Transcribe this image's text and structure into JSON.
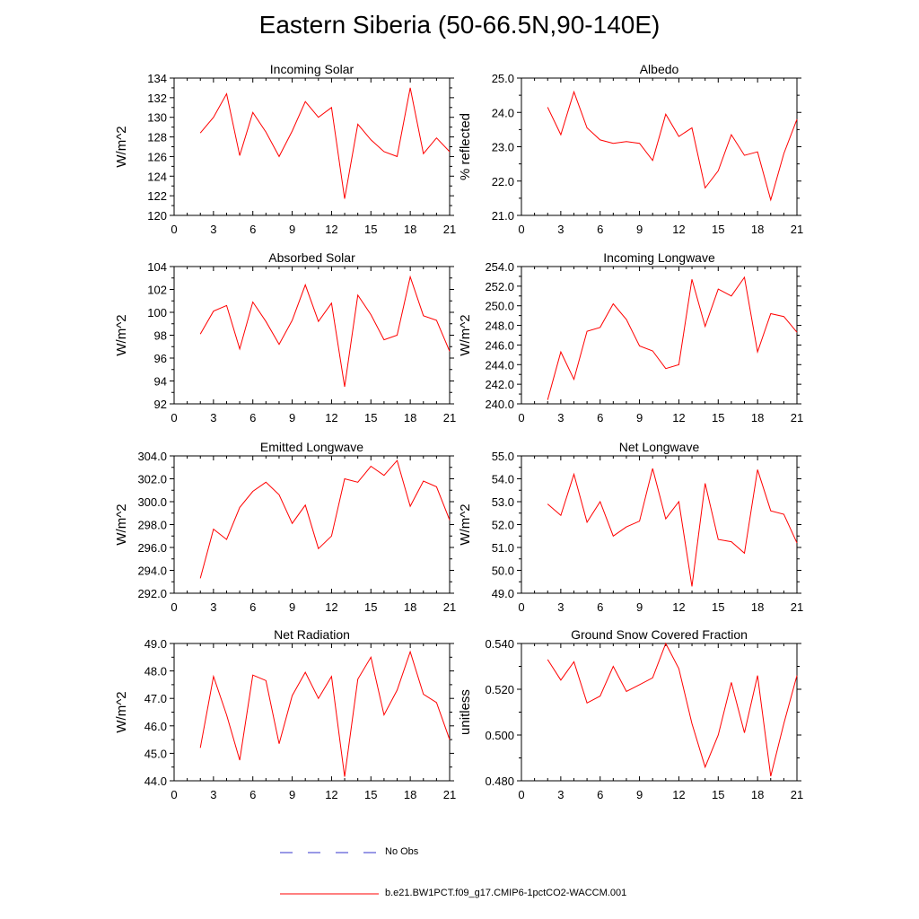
{
  "title": "Eastern Siberia (50-66.5N,90-140E)",
  "colors": {
    "series": "#ff0000",
    "obs": "#3333cc",
    "axis": "#000000"
  },
  "legend": {
    "obs_label": "No Obs",
    "series_label": "b.e21.BW1PCT.f09_g17.CMIP6-1pctCO2-WACCM.001"
  },
  "chart_data": [
    {
      "type": "line",
      "title": "Incoming Solar",
      "ylabel": "W/m^2",
      "xlabel": "",
      "xlim": [
        0,
        21
      ],
      "ylim": [
        120,
        134
      ],
      "xticks": [
        "0",
        "3",
        "6",
        "9",
        "12",
        "15",
        "18",
        "21"
      ],
      "yticks": [
        "120",
        "122",
        "124",
        "126",
        "128",
        "130",
        "132",
        "134"
      ],
      "x": [
        2,
        3,
        4,
        5,
        6,
        7,
        8,
        9,
        10,
        11,
        12,
        13,
        14,
        15,
        16,
        17,
        18,
        19,
        20,
        21
      ],
      "series": [
        {
          "name": "b.e21.BW1PCT.f09_g17.CMIP6-1pctCO2-WACCM.001",
          "values": [
            128.4,
            130.0,
            132.4,
            126.1,
            130.5,
            128.5,
            126.0,
            128.6,
            131.6,
            130.0,
            131.0,
            121.7,
            129.3,
            127.7,
            126.5,
            126.0,
            133.0,
            126.3,
            127.9,
            126.5
          ]
        }
      ]
    },
    {
      "type": "line",
      "title": "Albedo",
      "ylabel": "% reflected",
      "xlabel": "",
      "xlim": [
        0,
        21
      ],
      "ylim": [
        21.0,
        25.0
      ],
      "xticks": [
        "0",
        "3",
        "6",
        "9",
        "12",
        "15",
        "18",
        "21"
      ],
      "yticks": [
        "21.0",
        "22.0",
        "23.0",
        "24.0",
        "25.0"
      ],
      "x": [
        2,
        3,
        4,
        5,
        6,
        7,
        8,
        9,
        10,
        11,
        12,
        13,
        14,
        15,
        16,
        17,
        18,
        19,
        20,
        21
      ],
      "series": [
        {
          "name": "b.e21.BW1PCT.f09_g17.CMIP6-1pctCO2-WACCM.001",
          "values": [
            24.15,
            23.35,
            24.6,
            23.55,
            23.2,
            23.1,
            23.15,
            23.1,
            22.6,
            23.95,
            23.3,
            23.55,
            21.8,
            22.3,
            23.35,
            22.75,
            22.85,
            21.45,
            22.8,
            23.8
          ]
        }
      ]
    },
    {
      "type": "line",
      "title": "Absorbed Solar",
      "ylabel": "W/m^2",
      "xlabel": "",
      "xlim": [
        0,
        21
      ],
      "ylim": [
        92,
        104
      ],
      "xticks": [
        "0",
        "3",
        "6",
        "9",
        "12",
        "15",
        "18",
        "21"
      ],
      "yticks": [
        "92",
        "94",
        "96",
        "98",
        "100",
        "102",
        "104"
      ],
      "x": [
        2,
        3,
        4,
        5,
        6,
        7,
        8,
        9,
        10,
        11,
        12,
        13,
        14,
        15,
        16,
        17,
        18,
        19,
        20,
        21
      ],
      "series": [
        {
          "name": "b.e21.BW1PCT.f09_g17.CMIP6-1pctCO2-WACCM.001",
          "values": [
            98.1,
            100.1,
            100.6,
            96.8,
            100.9,
            99.2,
            97.2,
            99.3,
            102.4,
            99.2,
            100.8,
            93.5,
            101.5,
            99.8,
            97.6,
            98.0,
            103.1,
            99.7,
            99.3,
            96.6
          ]
        }
      ]
    },
    {
      "type": "line",
      "title": "Incoming Longwave",
      "ylabel": "W/m^2",
      "xlabel": "",
      "xlim": [
        0,
        21
      ],
      "ylim": [
        240.0,
        254.0
      ],
      "xticks": [
        "0",
        "3",
        "6",
        "9",
        "12",
        "15",
        "18",
        "21"
      ],
      "yticks": [
        "240.0",
        "242.0",
        "244.0",
        "246.0",
        "248.0",
        "250.0",
        "252.0",
        "254.0"
      ],
      "x": [
        2,
        3,
        4,
        5,
        6,
        7,
        8,
        9,
        10,
        11,
        12,
        13,
        14,
        15,
        16,
        17,
        18,
        19,
        20,
        21
      ],
      "series": [
        {
          "name": "b.e21.BW1PCT.f09_g17.CMIP6-1pctCO2-WACCM.001",
          "values": [
            240.4,
            245.3,
            242.5,
            247.4,
            247.8,
            250.2,
            248.6,
            245.9,
            245.4,
            243.6,
            244.0,
            252.7,
            247.9,
            251.7,
            251.0,
            252.9,
            245.3,
            249.2,
            248.9,
            247.3
          ]
        }
      ]
    },
    {
      "type": "line",
      "title": "Emitted Longwave",
      "ylabel": "W/m^2",
      "xlabel": "",
      "xlim": [
        0,
        21
      ],
      "ylim": [
        292.0,
        304.0
      ],
      "xticks": [
        "0",
        "3",
        "6",
        "9",
        "12",
        "15",
        "18",
        "21"
      ],
      "yticks": [
        "292.0",
        "294.0",
        "296.0",
        "298.0",
        "300.0",
        "302.0",
        "304.0"
      ],
      "x": [
        2,
        3,
        4,
        5,
        6,
        7,
        8,
        9,
        10,
        11,
        12,
        13,
        14,
        15,
        16,
        17,
        18,
        19,
        20,
        21
      ],
      "series": [
        {
          "name": "b.e21.BW1PCT.f09_g17.CMIP6-1pctCO2-WACCM.001",
          "values": [
            293.3,
            297.6,
            296.7,
            299.5,
            300.9,
            301.7,
            300.6,
            298.1,
            299.7,
            295.9,
            297.0,
            302.0,
            301.7,
            303.1,
            302.3,
            303.6,
            299.6,
            301.8,
            301.3,
            298.4
          ]
        }
      ]
    },
    {
      "type": "line",
      "title": "Net Longwave",
      "ylabel": "W/m^2",
      "xlabel": "",
      "xlim": [
        0,
        21
      ],
      "ylim": [
        49.0,
        55.0
      ],
      "xticks": [
        "0",
        "3",
        "6",
        "9",
        "12",
        "15",
        "18",
        "21"
      ],
      "yticks": [
        "49.0",
        "50.0",
        "51.0",
        "52.0",
        "53.0",
        "54.0",
        "55.0"
      ],
      "x": [
        2,
        3,
        4,
        5,
        6,
        7,
        8,
        9,
        10,
        11,
        12,
        13,
        14,
        15,
        16,
        17,
        18,
        19,
        20,
        21
      ],
      "series": [
        {
          "name": "b.e21.BW1PCT.f09_g17.CMIP6-1pctCO2-WACCM.001",
          "values": [
            52.9,
            52.4,
            54.2,
            52.1,
            53.0,
            51.5,
            51.9,
            52.15,
            54.45,
            52.25,
            53.0,
            49.3,
            53.8,
            51.35,
            51.25,
            50.75,
            54.4,
            52.6,
            52.45,
            51.2
          ]
        }
      ]
    },
    {
      "type": "line",
      "title": "Net Radiation",
      "ylabel": "W/m^2",
      "xlabel": "",
      "xlim": [
        0,
        21
      ],
      "ylim": [
        44.0,
        49.0
      ],
      "xticks": [
        "0",
        "3",
        "6",
        "9",
        "12",
        "15",
        "18",
        "21"
      ],
      "yticks": [
        "44.0",
        "45.0",
        "46.0",
        "47.0",
        "48.0",
        "49.0"
      ],
      "x": [
        2,
        3,
        4,
        5,
        6,
        7,
        8,
        9,
        10,
        11,
        12,
        13,
        14,
        15,
        16,
        17,
        18,
        19,
        20,
        21
      ],
      "series": [
        {
          "name": "b.e21.BW1PCT.f09_g17.CMIP6-1pctCO2-WACCM.001",
          "values": [
            45.2,
            47.8,
            46.4,
            44.75,
            47.85,
            47.65,
            45.35,
            47.1,
            47.95,
            47.0,
            47.8,
            44.15,
            47.7,
            48.5,
            46.4,
            47.3,
            48.7,
            47.15,
            46.85,
            45.5
          ]
        }
      ]
    },
    {
      "type": "line",
      "title": "Ground Snow Covered Fraction",
      "ylabel": "unitless",
      "xlabel": "",
      "xlim": [
        0,
        21
      ],
      "ylim": [
        0.48,
        0.54
      ],
      "xticks": [
        "0",
        "3",
        "6",
        "9",
        "12",
        "15",
        "18",
        "21"
      ],
      "yticks": [
        "0.480",
        "0.500",
        "0.520",
        "0.540"
      ],
      "x": [
        2,
        3,
        4,
        5,
        6,
        7,
        8,
        9,
        10,
        11,
        12,
        13,
        14,
        15,
        16,
        17,
        18,
        19,
        20,
        21
      ],
      "series": [
        {
          "name": "b.e21.BW1PCT.f09_g17.CMIP6-1pctCO2-WACCM.001",
          "values": [
            0.533,
            0.524,
            0.532,
            0.514,
            0.517,
            0.53,
            0.519,
            0.522,
            0.525,
            0.54,
            0.529,
            0.505,
            0.486,
            0.5,
            0.523,
            0.501,
            0.526,
            0.482,
            0.505,
            0.526
          ]
        }
      ]
    }
  ]
}
